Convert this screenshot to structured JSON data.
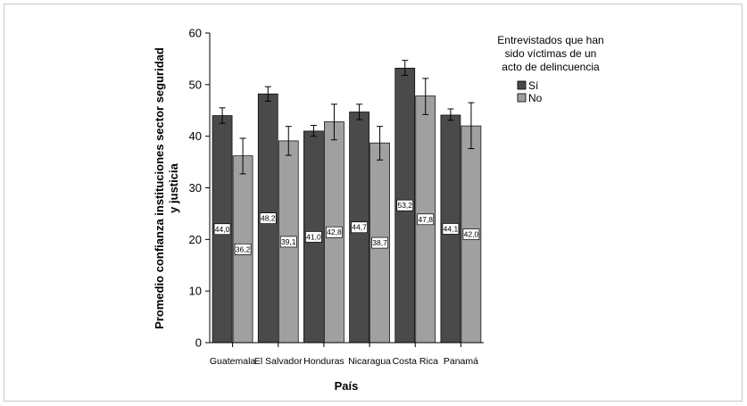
{
  "chart_data": {
    "type": "bar",
    "title": "",
    "xlabel": "País",
    "ylabel_lines": [
      "Promedio confianza instituciones sector seguridad",
      "y justicia"
    ],
    "categories": [
      "Guatemala",
      "El Salvador",
      "Honduras",
      "Nicaragua",
      "Costa Rica",
      "Panamá"
    ],
    "series": [
      {
        "name": "Sí",
        "color": "#4a4a4a",
        "values": [
          44.0,
          48.2,
          41.0,
          44.7,
          53.2,
          44.1
        ],
        "labels": [
          "44,0",
          "48,2",
          "41,0",
          "44,7",
          "53,2",
          "44,1"
        ],
        "error_low": [
          42.5,
          46.8,
          40.0,
          43.2,
          51.8,
          43.1
        ],
        "error_high": [
          45.5,
          49.6,
          42.1,
          46.2,
          54.7,
          45.3
        ]
      },
      {
        "name": "No",
        "color": "#a0a0a0",
        "values": [
          36.2,
          39.1,
          42.8,
          38.7,
          47.8,
          42.0
        ],
        "labels": [
          "36,2",
          "39,1",
          "42,8",
          "38,7",
          "47,8",
          "42,0"
        ],
        "error_low": [
          32.7,
          36.3,
          39.3,
          35.4,
          44.2,
          37.6
        ],
        "error_high": [
          39.6,
          41.9,
          46.2,
          41.9,
          51.2,
          46.5
        ]
      }
    ],
    "ylim": [
      0,
      60
    ],
    "yticks": [
      0,
      10,
      20,
      30,
      40,
      50,
      60
    ],
    "grid": false,
    "legend": {
      "title_lines": [
        "Entrevistados que han",
        "sido víctimas de un",
        "acto de delincuencia"
      ],
      "placement": "right-top"
    }
  }
}
